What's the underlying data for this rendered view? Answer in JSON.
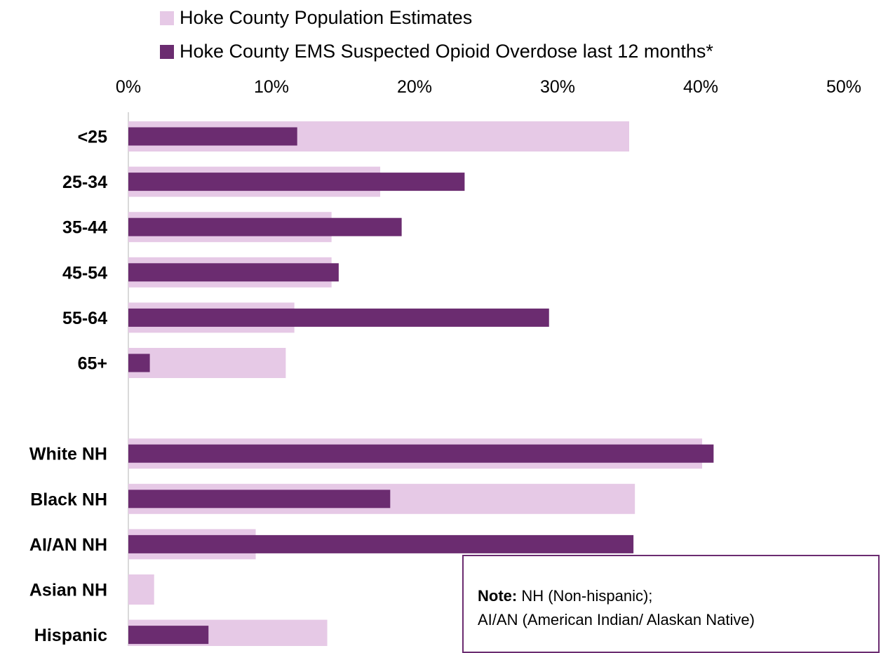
{
  "chart_data": {
    "type": "bar",
    "orientation": "horizontal",
    "categories": [
      "<25",
      "25-34",
      "35-44",
      "45-54",
      "55-64",
      "65+",
      "",
      "White NH",
      "Black NH",
      "AI/AN NH",
      "Asian NH",
      "Hispanic"
    ],
    "series": [
      {
        "name": "Hoke County Population Estimates",
        "color": "#e6c9e6",
        "values": [
          35.0,
          17.6,
          14.2,
          14.2,
          11.6,
          11.0,
          null,
          40.1,
          35.4,
          8.9,
          1.8,
          13.9
        ]
      },
      {
        "name": "Hoke County EMS Suspected Opioid Overdose last 12 months*",
        "color": "#6b2c70",
        "values": [
          11.8,
          23.5,
          19.1,
          14.7,
          29.4,
          1.5,
          null,
          40.9,
          18.3,
          35.3,
          0.0,
          5.6
        ]
      }
    ],
    "xticks": [
      "0%",
      "10%",
      "20%",
      "30%",
      "40%",
      "50%"
    ],
    "xlim": [
      0,
      50
    ],
    "legend_position": "top",
    "axis_position": "top",
    "grid": false
  },
  "legend": {
    "item0": "Hoke County Population Estimates",
    "item1": "Hoke County EMS Suspected Opioid Overdose last 12 months*"
  },
  "note": {
    "label": "Note:",
    "line1": "NH (Non-hispanic);",
    "line2": "AI/AN (American Indian/ Alaskan Native)"
  }
}
